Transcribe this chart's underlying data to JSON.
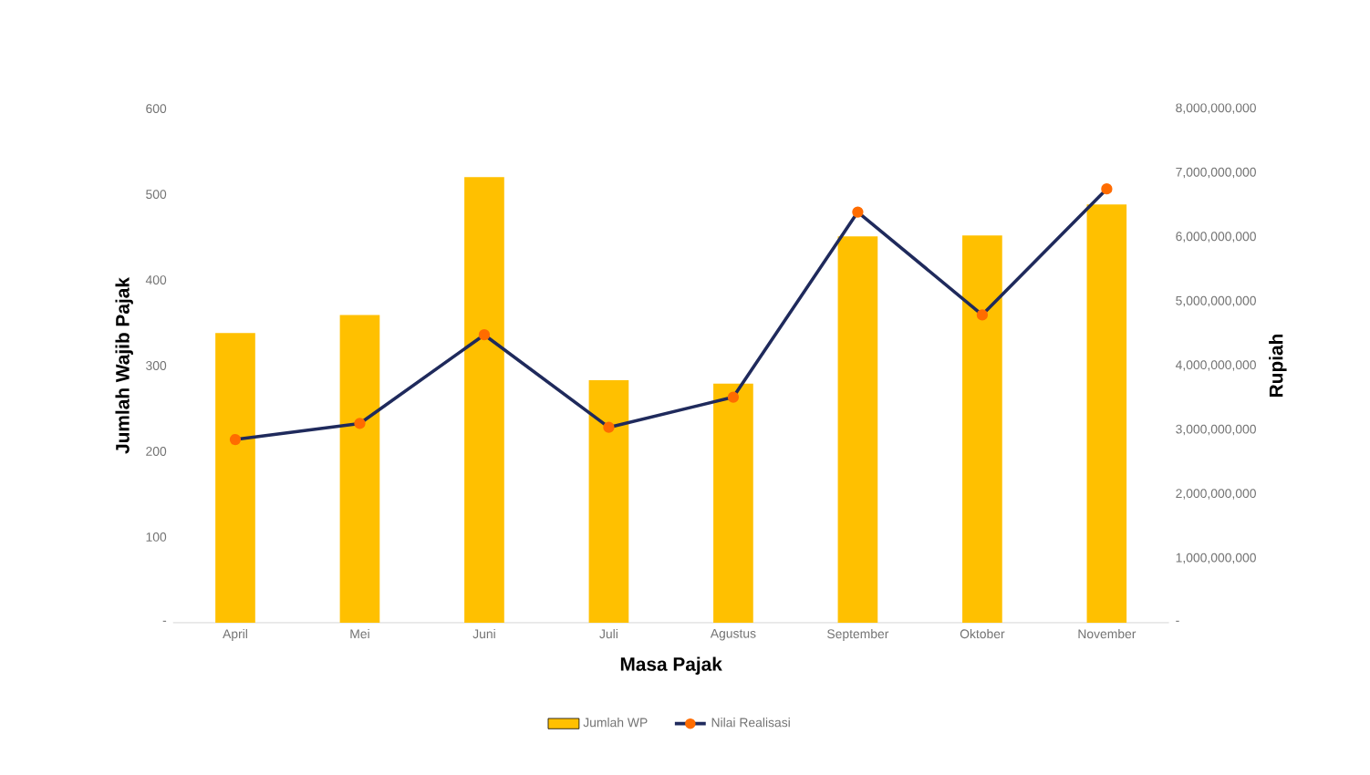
{
  "chart_data": {
    "type": "bar",
    "xlabel": "Masa Pajak",
    "ylabel": "Jumlah Wajib Pajak",
    "y2label": "Rupiah",
    "categories": [
      "April",
      "Mei",
      "Juni",
      "Juli",
      "Agustus",
      "September",
      "Oktober",
      "November"
    ],
    "series": [
      {
        "name": "Jumlah WP",
        "color": "#ffc000",
        "values": [
          338,
          359,
          520,
          283,
          279,
          451,
          452,
          488
        ]
      },
      {
        "name": "Nilai Realisasi",
        "type": "line",
        "axis": "y2",
        "color": "#1f2a5c",
        "marker": "circle",
        "values": [
          2850000000,
          3100000000,
          4480000000,
          3040000000,
          3510000000,
          6390000000,
          4790000000,
          6750000000
        ]
      }
    ],
    "ylim": [
      0,
      600
    ],
    "yticks": [
      {
        "value": 0,
        "label": "-"
      },
      100,
      200,
      300,
      400,
      500,
      600
    ],
    "y2lim": [
      0,
      8000000000
    ],
    "y2ticks": [
      {
        "value": 0,
        "label": "-"
      },
      {
        "value": 1000000000,
        "label": "1,000,000,000"
      },
      {
        "value": 2000000000,
        "label": "2,000,000,000"
      },
      {
        "value": 3000000000,
        "label": "3,000,000,000"
      },
      {
        "value": 4000000000,
        "label": "4,000,000,000"
      },
      {
        "value": 5000000000,
        "label": "5,000,000,000"
      },
      {
        "value": 6000000000,
        "label": "6,000,000,000"
      },
      {
        "value": 7000000000,
        "label": "7,000,000,000"
      },
      {
        "value": 8000000000,
        "label": "8,000,000,000"
      }
    ],
    "grid": false,
    "legend": "bottom"
  }
}
